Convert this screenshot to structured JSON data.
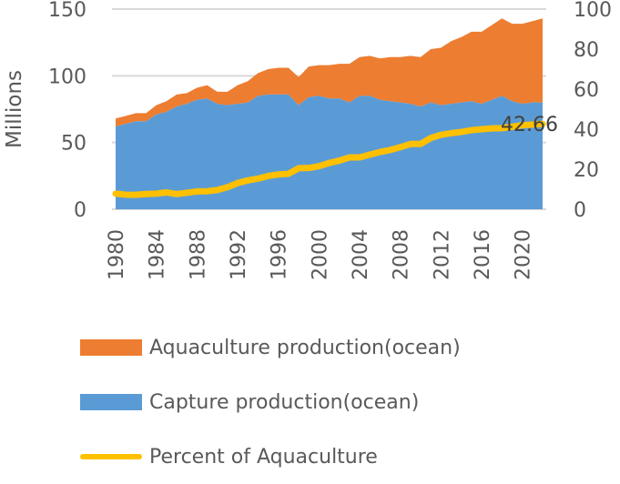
{
  "chart_data": {
    "type": "area",
    "title": "",
    "xlabel": "",
    "ylabel": "Millions",
    "y2label": "",
    "ylim": [
      0,
      150
    ],
    "y2lim": [
      0,
      100
    ],
    "yticks": [
      0,
      50,
      100,
      150
    ],
    "y2ticks": [
      0,
      20,
      40,
      60,
      80,
      100
    ],
    "xticks": [
      1980,
      1984,
      1988,
      1992,
      1996,
      2000,
      2004,
      2008,
      2012,
      2016,
      2020
    ],
    "grid": true,
    "legend_position": "bottom",
    "x": [
      1980,
      1981,
      1982,
      1983,
      1984,
      1985,
      1986,
      1987,
      1988,
      1989,
      1990,
      1991,
      1992,
      1993,
      1994,
      1995,
      1996,
      1997,
      1998,
      1999,
      2000,
      2001,
      2002,
      2003,
      2004,
      2005,
      2006,
      2007,
      2008,
      2009,
      2010,
      2011,
      2012,
      2013,
      2014,
      2015,
      2016,
      2017,
      2018,
      2019,
      2020,
      2021,
      2022
    ],
    "series": [
      {
        "name": "Capture production(ocean)",
        "kind": "stacked-area",
        "axis": "left",
        "color": "#5B9BD5",
        "values": [
          62,
          64,
          66,
          66,
          71,
          73,
          77,
          79,
          82,
          83,
          79,
          78,
          79,
          80,
          85,
          86,
          86,
          86,
          78,
          84,
          85,
          83,
          83,
          80,
          85,
          85,
          82,
          81,
          80,
          79,
          77,
          80,
          78,
          79,
          80,
          81,
          79,
          82,
          85,
          81,
          79,
          80,
          80
        ]
      },
      {
        "name": "Aquaculture production(ocean)",
        "kind": "stacked-area",
        "axis": "left",
        "color": "#ED7D31",
        "values": [
          6,
          6,
          6,
          6,
          7,
          8,
          9,
          8,
          9,
          10,
          9,
          10,
          14,
          16,
          17,
          19,
          20,
          20,
          21,
          23,
          23,
          25,
          26,
          29,
          29,
          30,
          31,
          33,
          34,
          36,
          37,
          40,
          43,
          47,
          49,
          52,
          54,
          56,
          58,
          58,
          60,
          61,
          63
        ]
      },
      {
        "name": "Percent of Aquaculture",
        "kind": "line",
        "axis": "right",
        "color": "#FFC000",
        "values": [
          7.8,
          7.3,
          7.2,
          7.6,
          7.8,
          8.4,
          7.6,
          8.2,
          8.9,
          9.0,
          9.6,
          11.0,
          13.1,
          14.4,
          15.3,
          16.6,
          17.4,
          17.7,
          20.5,
          20.6,
          21.5,
          23.1,
          24.3,
          25.9,
          25.9,
          27.3,
          28.6,
          29.6,
          31.0,
          32.6,
          32.6,
          35.6,
          37.2,
          38.0,
          38.6,
          39.5,
          40.0,
          40.4,
          40.5,
          41.2,
          42.0,
          42.3,
          42.66
        ]
      }
    ],
    "annotations": [
      {
        "text": "42.66",
        "series": "Percent of Aquaculture",
        "x": 2022
      }
    ]
  }
}
